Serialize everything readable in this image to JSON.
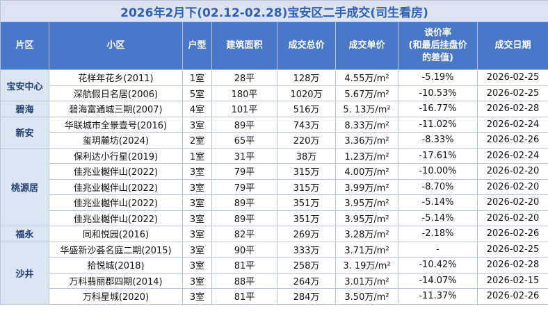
{
  "title": "2026年2月下(02.12-02.28)宝安区二手成交(司生看房)",
  "headers": [
    "片区",
    "小区",
    "户型",
    "建筑面积",
    "成交总价",
    "成交单价",
    "谈价率\n(和最后挂盘价\n的差值)",
    "成交日期"
  ],
  "groups": [
    {
      "region": "宝安中心",
      "rows": [
        [
          "花样年花乡(2011)",
          "1室",
          "28平",
          "128万",
          "4.55万/m²",
          "-5.19%",
          "2026-02-25"
        ],
        [
          "深航假日名居(2006)",
          "5室",
          "180平",
          "1020万",
          "5.67万/m²",
          "-10.53%",
          "2026-02-25"
        ]
      ]
    },
    {
      "region": "碧海",
      "rows": [
        [
          "碧海富通城三期(2007)",
          "4室",
          "101平",
          "516万",
          "5. 13万/m²",
          "-16.77%",
          "2026-02-28"
        ]
      ]
    },
    {
      "region": "新安",
      "rows": [
        [
          "华联城市全景壹号(2016)",
          "3室",
          "89平",
          "743万",
          "8.33万/m²",
          "-11.02%",
          "2026-02-24"
        ],
        [
          "玺玥麓坊(2024)",
          "2室",
          "65平",
          "220万",
          "3.36万/m²",
          "-8.33%",
          "2026-02-26"
        ]
      ]
    },
    {
      "region": "桃源居",
      "rows": [
        [
          "保利达小行星(2019)",
          "1室",
          "31平",
          "38万",
          "1.23万/m²",
          "-17.61%",
          "2026-02-24"
        ],
        [
          "佳兆业樾伴山(2022)",
          "3室",
          "79平",
          "315万",
          "4.00万/m²",
          "-10.00%",
          "2026-02-20"
        ],
        [
          "佳兆业樾伴山(2022)",
          "3室",
          "79平",
          "315万",
          "3.99万/m²",
          "-8.70%",
          "2026-02-20"
        ],
        [
          "佳兆业樾伴山(2022)",
          "3室",
          "89平",
          "351万",
          "3.95万/m²",
          "-5.14%",
          "2026-02-20"
        ],
        [
          "佳兆业樾伴山(2022)",
          "3室",
          "89平",
          "351万",
          "3.95万/m²",
          "-5.14%",
          "2026-02-20"
        ]
      ]
    },
    {
      "region": "福永",
      "rows": [
        [
          "同和悦园(2016)",
          "3室",
          "82平",
          "269万",
          "3.28万/m²",
          "-2.18%",
          "2026-02-26"
        ]
      ]
    },
    {
      "region": "沙井",
      "rows": [
        [
          "华盛新沙荟名庭二期(2015)",
          "3室",
          "90平",
          "333万",
          "3.71万/m²",
          "-",
          "2026-02-25"
        ],
        [
          "拾悦城(2018)",
          "3室",
          "81平",
          "258万",
          "3. 19万/m²",
          "-10.42%",
          "2026-02-28"
        ],
        [
          "万科翡丽郡四期(2014)",
          "3室",
          "88平",
          "264万",
          "3.01万/m²",
          "-14.07%",
          "2026-02-15"
        ],
        [
          "万科星城(2020)",
          "3室",
          "81平",
          "284万",
          "3.50万/m²",
          "-11.37%",
          "2026-02-26"
        ]
      ]
    }
  ]
}
